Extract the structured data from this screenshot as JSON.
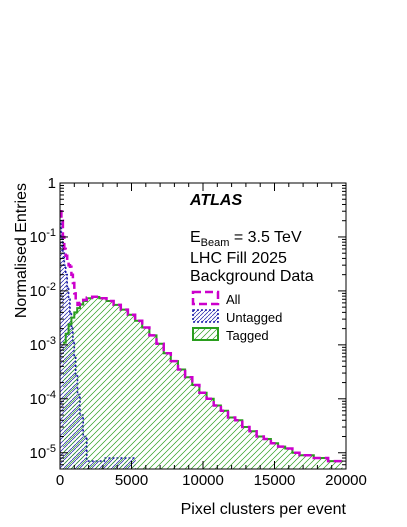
{
  "chart_data": {
    "type": "histogram",
    "xlabel": "Pixel clusters per event",
    "ylabel": "Normalised Entries",
    "xlim": [
      0,
      20000
    ],
    "ylim": [
      5e-06,
      1
    ],
    "yscale": "log",
    "x_ticks": [
      0,
      5000,
      10000,
      15000,
      20000
    ],
    "x_tick_labels": [
      "0",
      "5000",
      "10000",
      "15000",
      "20000"
    ],
    "y_ticks": [
      1e-05,
      0.0001,
      0.001,
      0.01,
      0.1,
      1
    ],
    "grid": false,
    "legend_position": "middle-right",
    "annotations": {
      "experiment": "ATLAS",
      "beam_prefix": "E",
      "beam_sub": "Beam",
      "beam_suffix": " = 3.5 TeV",
      "fill": "LHC Fill 2025",
      "dataset": "Background Data"
    },
    "series": [
      {
        "name": "All",
        "color": "#cc00cc",
        "style": "dashed-outline",
        "x": [
          50,
          150,
          250,
          350,
          450,
          550,
          650,
          750,
          850,
          950,
          1050,
          1150,
          1300,
          1500,
          1750,
          2000,
          2500,
          3000,
          3500,
          4000,
          4500,
          5000,
          5500,
          6000,
          6500,
          7000,
          7500,
          8000,
          8500,
          9000,
          9500,
          10000,
          10500,
          11000,
          11500,
          12000,
          12500,
          13000,
          13500,
          14000,
          14500,
          15000,
          15500,
          16000,
          16500,
          17000,
          17500,
          18000,
          18500,
          19000,
          19500
        ],
        "y": [
          0.3,
          0.2,
          0.1,
          0.06,
          0.045,
          0.035,
          0.03,
          0.028,
          0.02,
          0.014,
          0.009,
          0.0065,
          0.0055,
          0.006,
          0.0068,
          0.0075,
          0.0078,
          0.0073,
          0.0065,
          0.0055,
          0.0045,
          0.0036,
          0.0028,
          0.0021,
          0.0015,
          0.00105,
          0.0007,
          0.0005,
          0.00035,
          0.00025,
          0.00018,
          0.00013,
          0.0001,
          7.5e-05,
          6e-05,
          4.5e-05,
          4e-05,
          3e-05,
          2.5e-05,
          2e-05,
          1.8e-05,
          1.5e-05,
          1.3e-05,
          1.2e-05,
          1e-05,
          9e-06,
          9e-06,
          8e-06,
          8e-06,
          7e-06,
          7e-06
        ]
      },
      {
        "name": "Untagged",
        "color": "#1a1aa8",
        "style": "dotted-outline",
        "x": [
          50,
          150,
          250,
          350,
          450,
          550,
          650,
          750,
          850,
          950,
          1050,
          1150,
          1300,
          1500,
          1750,
          2000,
          4200
        ],
        "y": [
          0.2,
          0.1,
          0.05,
          0.03,
          0.02,
          0.012,
          0.007,
          0.004,
          0.0022,
          0.0012,
          0.0006,
          0.00028,
          0.00012,
          5e-05,
          2e-05,
          7e-06,
          8e-06
        ]
      },
      {
        "name": "Tagged",
        "color": "#2a9e1e",
        "style": "solid-outline",
        "x": [
          300,
          500,
          700,
          900,
          1100,
          1300,
          1500,
          1750,
          2000,
          2500,
          3000,
          3500,
          4000,
          4500,
          5000,
          5500,
          6000,
          6500,
          7000,
          7500,
          8000,
          8500,
          9000,
          9500,
          10000,
          10500,
          11000,
          11500,
          12000,
          12500,
          13000,
          13500,
          14000,
          14500,
          15000,
          15500,
          16000,
          16500,
          17000,
          17500,
          18000,
          18500,
          19000,
          19500
        ],
        "y": [
          0.0011,
          0.0016,
          0.0024,
          0.0032,
          0.004,
          0.0048,
          0.0056,
          0.0065,
          0.0073,
          0.0077,
          0.0073,
          0.0065,
          0.0055,
          0.0045,
          0.0036,
          0.0028,
          0.0021,
          0.0015,
          0.00105,
          0.0007,
          0.0005,
          0.00035,
          0.00025,
          0.00018,
          0.00013,
          0.0001,
          7.5e-05,
          6e-05,
          4.5e-05,
          4e-05,
          3e-05,
          2.5e-05,
          2e-05,
          1.8e-05,
          1.5e-05,
          1.3e-05,
          1.2e-05,
          1e-05,
          9e-06,
          9e-06,
          8e-06,
          8e-06,
          7e-06,
          7e-06
        ]
      }
    ]
  }
}
